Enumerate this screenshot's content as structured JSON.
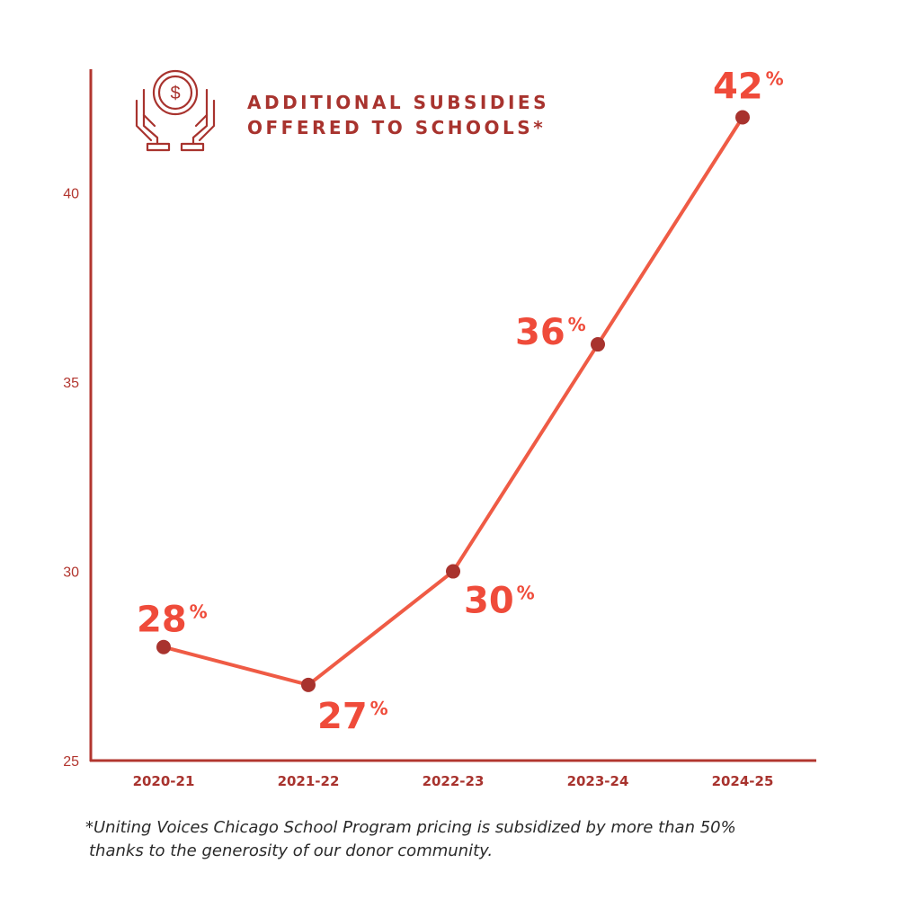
{
  "header": {
    "title_lines": [
      "ADDITIONAL SUBSIDIES",
      "OFFERED TO SCHOOLS*"
    ],
    "icon": "hands-holding-coin-icon"
  },
  "colors": {
    "line": "#ef5b45",
    "point": "#a8332e",
    "axis": "#b2362f",
    "label": "#ef4b3a",
    "title": "#a8332e"
  },
  "chart_data": {
    "type": "line",
    "categories": [
      "2020-21",
      "2021-22",
      "2022-23",
      "2023-24",
      "2024-25"
    ],
    "series": [
      {
        "values": [
          28,
          27,
          30,
          36,
          42
        ]
      }
    ],
    "data_labels": [
      "28",
      "27",
      "30",
      "36",
      "42"
    ],
    "data_label_suffix": "%",
    "yticks": [
      25,
      30,
      35,
      40
    ],
    "ylim": [
      25,
      43.2
    ],
    "grid": false,
    "xlabel": "",
    "ylabel": ""
  },
  "footnote": {
    "line1": "*Uniting Voices Chicago School Program pricing is subsidized by more than 50%",
    "line2": "thanks to the generosity of our donor community."
  }
}
